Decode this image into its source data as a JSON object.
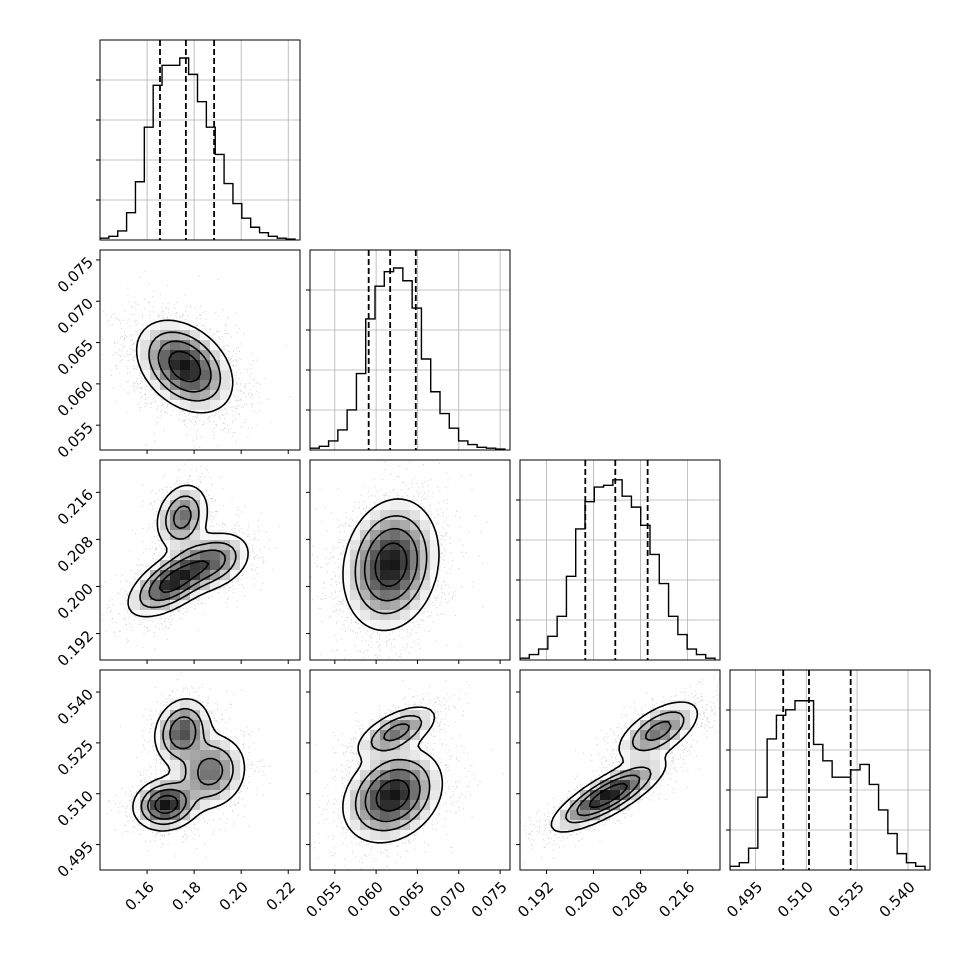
{
  "chart_data": {
    "type": "corner",
    "title": "",
    "variables": [
      {
        "range": [
          0.14,
          0.225
        ],
        "ticks": [
          "0.16",
          "0.18",
          "0.20",
          "0.22"
        ],
        "quantiles": [
          0.1655,
          0.1765,
          0.1885
        ],
        "hist": [
          0.01,
          0.02,
          0.05,
          0.15,
          0.32,
          0.62,
          0.85,
          0.96,
          0.96,
          1.0,
          0.91,
          0.76,
          0.62,
          0.47,
          0.31,
          0.2,
          0.12,
          0.07,
          0.04,
          0.02,
          0.01,
          0.005
        ]
      },
      {
        "range": [
          0.052,
          0.0762
        ],
        "ticks": [
          "0.055",
          "0.060",
          "0.065",
          "0.070",
          "0.075"
        ],
        "quantiles": [
          0.0591,
          0.0617,
          0.0648
        ],
        "hist": [
          0.01,
          0.02,
          0.05,
          0.11,
          0.22,
          0.42,
          0.72,
          0.9,
          0.98,
          1.0,
          0.93,
          0.78,
          0.5,
          0.32,
          0.2,
          0.12,
          0.05,
          0.03,
          0.015,
          0.01,
          0.005
        ]
      },
      {
        "range": [
          0.1875,
          0.2215
        ],
        "ticks": [
          "0.192",
          "0.200",
          "0.208",
          "0.216"
        ],
        "quantiles": [
          0.1986,
          0.2037,
          0.2092
        ],
        "hist": [
          0.01,
          0.03,
          0.06,
          0.13,
          0.24,
          0.46,
          0.72,
          0.87,
          0.95,
          0.96,
          0.99,
          0.9,
          0.84,
          0.74,
          0.58,
          0.42,
          0.24,
          0.14,
          0.06,
          0.03,
          0.01
        ]
      },
      {
        "range": [
          0.4875,
          0.5465
        ],
        "ticks": [
          "0.495",
          "0.510",
          "0.525",
          "0.540"
        ],
        "quantiles": [
          0.5032,
          0.5108,
          0.5231
        ],
        "hist": [
          0.02,
          0.04,
          0.12,
          0.4,
          0.72,
          0.85,
          0.88,
          0.93,
          0.93,
          0.69,
          0.6,
          0.51,
          0.51,
          0.55,
          0.58,
          0.47,
          0.33,
          0.2,
          0.09,
          0.04,
          0.02
        ]
      }
    ],
    "pairs": [
      {
        "x": 0,
        "y": 1,
        "modes": [
          {
            "mx": 0.176,
            "my": 0.0621,
            "sx": 0.0095,
            "sy": 0.0026,
            "r": -0.35,
            "w": 1
          }
        ]
      },
      {
        "x": 0,
        "y": 2,
        "modes": [
          {
            "mx": 0.175,
            "my": 0.2118,
            "sx": 0.0055,
            "sy": 0.0028,
            "r": 0.2,
            "w": 0.5
          },
          {
            "mx": 0.171,
            "my": 0.2008,
            "sx": 0.009,
            "sy": 0.0028,
            "r": 0.6,
            "w": 0.75
          },
          {
            "mx": 0.188,
            "my": 0.2042,
            "sx": 0.008,
            "sy": 0.0025,
            "r": 0.3,
            "w": 0.45
          }
        ]
      },
      {
        "x": 1,
        "y": 2,
        "modes": [
          {
            "mx": 0.0618,
            "my": 0.2037,
            "sx": 0.0027,
            "sy": 0.0052,
            "r": 0.15,
            "w": 1
          }
        ]
      },
      {
        "x": 0,
        "y": 3,
        "modes": [
          {
            "mx": 0.175,
            "my": 0.5283,
            "sx": 0.0058,
            "sy": 0.0048,
            "r": 0.15,
            "w": 0.6
          },
          {
            "mx": 0.168,
            "my": 0.5068,
            "sx": 0.0065,
            "sy": 0.0036,
            "r": 0.1,
            "w": 0.8
          },
          {
            "mx": 0.187,
            "my": 0.5165,
            "sx": 0.0075,
            "sy": 0.0055,
            "r": 0.1,
            "w": 0.5
          }
        ]
      },
      {
        "x": 1,
        "y": 3,
        "modes": [
          {
            "mx": 0.0625,
            "my": 0.5283,
            "sx": 0.0024,
            "sy": 0.0038,
            "r": 0.6,
            "w": 0.6
          },
          {
            "mx": 0.062,
            "my": 0.5095,
            "sx": 0.0028,
            "sy": 0.0065,
            "r": 0.25,
            "w": 1
          }
        ]
      },
      {
        "x": 2,
        "y": 3,
        "modes": [
          {
            "mx": 0.2025,
            "my": 0.5095,
            "sx": 0.0045,
            "sy": 0.005,
            "r": 0.8,
            "w": 1
          },
          {
            "mx": 0.211,
            "my": 0.5285,
            "sx": 0.0035,
            "sy": 0.0045,
            "r": 0.6,
            "w": 0.6
          }
        ]
      }
    ],
    "grid": true,
    "quantile_line_style": "dashed",
    "contour_levels": 4,
    "colors": {
      "line": "#000000",
      "grid": "#b0b0b0",
      "scatter": "#000000",
      "background": "#ffffff"
    }
  }
}
